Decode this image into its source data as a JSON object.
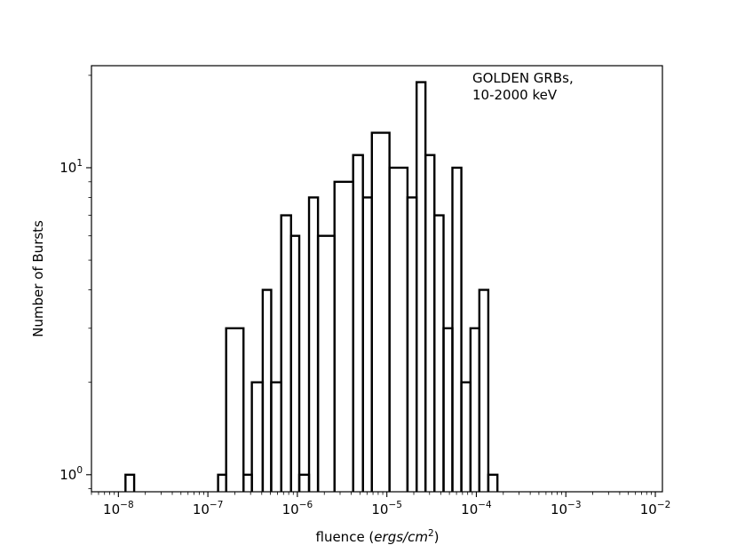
{
  "chart_data": {
    "type": "histogram",
    "title": "",
    "xlabel": "fluence (ergs/cm2)",
    "xlabel_parts": {
      "prefix": "fluence (",
      "italic": "ergs/cm",
      "sup": "2",
      "suffix": ")"
    },
    "ylabel": "Number of Bursts",
    "x_scale": "log",
    "y_scale": "log",
    "xlim": [
      5e-09,
      0.012
    ],
    "ylim": [
      0.88,
      21.5
    ],
    "grid": false,
    "x_ticks": [
      {
        "base": "10",
        "exp": "−8",
        "value": 1e-08
      },
      {
        "base": "10",
        "exp": "−7",
        "value": 1e-07
      },
      {
        "base": "10",
        "exp": "−6",
        "value": 1e-06
      },
      {
        "base": "10",
        "exp": "−5",
        "value": 1e-05
      },
      {
        "base": "10",
        "exp": "−4",
        "value": 0.0001
      },
      {
        "base": "10",
        "exp": "−3",
        "value": 0.001
      },
      {
        "base": "10",
        "exp": "−2",
        "value": 0.01
      }
    ],
    "y_ticks": [
      {
        "base": "10",
        "exp": "0",
        "value": 1
      },
      {
        "base": "10",
        "exp": "1",
        "value": 10
      }
    ],
    "annotation": [
      "GOLDEN GRBs,",
      "10-2000 keV"
    ],
    "series": [
      {
        "bins": [
          {
            "x0": 1.2e-08,
            "x1": 1.5e-08,
            "count": 1
          },
          {
            "x0": 1.3e-07,
            "x1": 1.6e-07,
            "count": 1
          },
          {
            "x0": 1.6e-07,
            "x1": 2.5e-07,
            "count": 3
          },
          {
            "x0": 2.5e-07,
            "x1": 3.1e-07,
            "count": 1
          },
          {
            "x0": 3.1e-07,
            "x1": 4.1e-07,
            "count": 2
          },
          {
            "x0": 4.1e-07,
            "x1": 5.1e-07,
            "count": 4
          },
          {
            "x0": 5.1e-07,
            "x1": 6.6e-07,
            "count": 2
          },
          {
            "x0": 6.6e-07,
            "x1": 8.5e-07,
            "count": 7
          },
          {
            "x0": 8.5e-07,
            "x1": 1.05e-06,
            "count": 6
          },
          {
            "x0": 1.05e-06,
            "x1": 1.35e-06,
            "count": 1
          },
          {
            "x0": 1.35e-06,
            "x1": 1.7e-06,
            "count": 8
          },
          {
            "x0": 1.7e-06,
            "x1": 2.6e-06,
            "count": 6
          },
          {
            "x0": 2.6e-06,
            "x1": 4.2e-06,
            "count": 9
          },
          {
            "x0": 4.2e-06,
            "x1": 5.4e-06,
            "count": 11
          },
          {
            "x0": 5.4e-06,
            "x1": 6.8e-06,
            "count": 8
          },
          {
            "x0": 6.8e-06,
            "x1": 1.07e-05,
            "count": 13
          },
          {
            "x0": 1.07e-05,
            "x1": 1.7e-05,
            "count": 10
          },
          {
            "x0": 1.7e-05,
            "x1": 2.15e-05,
            "count": 8
          },
          {
            "x0": 2.15e-05,
            "x1": 2.7e-05,
            "count": 19
          },
          {
            "x0": 2.7e-05,
            "x1": 3.4e-05,
            "count": 11
          },
          {
            "x0": 3.4e-05,
            "x1": 4.3e-05,
            "count": 7
          },
          {
            "x0": 4.3e-05,
            "x1": 5.4e-05,
            "count": 3
          },
          {
            "x0": 5.4e-05,
            "x1": 6.8e-05,
            "count": 10
          },
          {
            "x0": 6.8e-05,
            "x1": 8.6e-05,
            "count": 2
          },
          {
            "x0": 8.6e-05,
            "x1": 0.000108,
            "count": 3
          },
          {
            "x0": 0.000108,
            "x1": 0.000136,
            "count": 4
          },
          {
            "x0": 0.000136,
            "x1": 0.000172,
            "count": 1
          }
        ]
      }
    ]
  }
}
